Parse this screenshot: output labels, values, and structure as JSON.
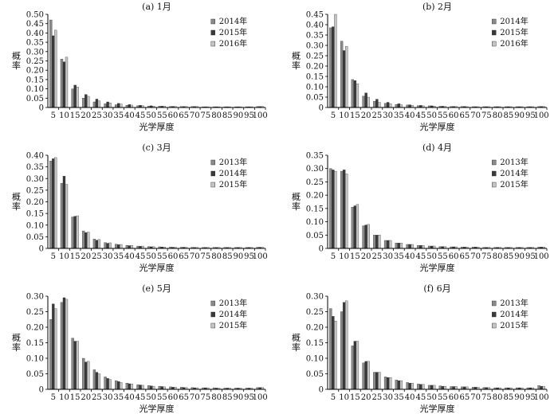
{
  "series_colors": [
    "#8a8a8a",
    "#3a3a3a",
    "#c4c4c4"
  ],
  "chart_data": [
    {
      "type": "bar",
      "title": "(a) 1月",
      "xlabel": "光学厚度",
      "ylabel": "概率",
      "categories": [
        "5",
        "10",
        "15",
        "20",
        "25",
        "30",
        "35",
        "40",
        "45",
        "50",
        "55",
        "60",
        "65",
        "70",
        "75",
        "80",
        "85",
        "90",
        "95",
        "100"
      ],
      "ylim": [
        0,
        0.5
      ],
      "yticks": [
        0,
        0.05,
        0.1,
        0.15,
        0.2,
        0.25,
        0.3,
        0.35,
        0.4,
        0.45,
        0.5
      ],
      "ytick_labels": [
        "0",
        "0.05",
        "0.10",
        "0.15",
        "0.20",
        "0.25",
        "0.30",
        "0.35",
        "0.40",
        "0.45",
        "0.50"
      ],
      "series": [
        {
          "name": "2014年",
          "values": [
            0.47,
            0.26,
            0.1,
            0.05,
            0.03,
            0.02,
            0.015,
            0.012,
            0.01,
            0.008,
            0.007,
            0.006,
            0.005,
            0.005,
            0.004,
            0.004,
            0.004,
            0.004,
            0.004,
            0.005
          ]
        },
        {
          "name": "2015年",
          "values": [
            0.385,
            0.245,
            0.12,
            0.07,
            0.045,
            0.03,
            0.022,
            0.016,
            0.012,
            0.009,
            0.007,
            0.006,
            0.005,
            0.005,
            0.004,
            0.004,
            0.004,
            0.004,
            0.004,
            0.005
          ]
        },
        {
          "name": "2016年",
          "values": [
            0.415,
            0.27,
            0.11,
            0.06,
            0.035,
            0.025,
            0.018,
            0.013,
            0.01,
            0.008,
            0.007,
            0.006,
            0.005,
            0.005,
            0.004,
            0.004,
            0.004,
            0.004,
            0.004,
            0.006
          ]
        }
      ]
    },
    {
      "type": "bar",
      "title": "(b) 2月",
      "xlabel": "光学厚度",
      "ylabel": "概率",
      "categories": [
        "5",
        "10",
        "15",
        "20",
        "25",
        "30",
        "35",
        "40",
        "45",
        "50",
        "55",
        "60",
        "65",
        "70",
        "75",
        "80",
        "85",
        "90",
        "95",
        "100"
      ],
      "ylim": [
        0,
        0.45
      ],
      "yticks": [
        0,
        0.05,
        0.1,
        0.15,
        0.2,
        0.25,
        0.3,
        0.35,
        0.4,
        0.45
      ],
      "ytick_labels": [
        "0",
        "0.05",
        "0.10",
        "0.15",
        "0.20",
        "0.25",
        "0.30",
        "0.35",
        "0.40",
        "0.45"
      ],
      "series": [
        {
          "name": "2014年",
          "values": [
            0.385,
            0.32,
            0.135,
            0.055,
            0.03,
            0.02,
            0.015,
            0.012,
            0.009,
            0.008,
            0.006,
            0.005,
            0.005,
            0.004,
            0.004,
            0.004,
            0.004,
            0.004,
            0.004,
            0.005
          ]
        },
        {
          "name": "2015年",
          "values": [
            0.39,
            0.275,
            0.13,
            0.07,
            0.04,
            0.025,
            0.018,
            0.013,
            0.01,
            0.008,
            0.006,
            0.005,
            0.005,
            0.004,
            0.004,
            0.004,
            0.004,
            0.004,
            0.004,
            0.005
          ]
        },
        {
          "name": "2016年",
          "values": [
            0.45,
            0.295,
            0.115,
            0.05,
            0.025,
            0.018,
            0.013,
            0.01,
            0.008,
            0.007,
            0.005,
            0.005,
            0.004,
            0.004,
            0.004,
            0.004,
            0.004,
            0.004,
            0.004,
            0.005
          ]
        }
      ]
    },
    {
      "type": "bar",
      "title": "(c) 3月",
      "xlabel": "光学厚度",
      "ylabel": "概率",
      "categories": [
        "5",
        "10",
        "15",
        "20",
        "25",
        "30",
        "35",
        "40",
        "45",
        "50",
        "55",
        "60",
        "65",
        "70",
        "75",
        "80",
        "85",
        "90",
        "95",
        "100"
      ],
      "ylim": [
        0,
        0.4
      ],
      "yticks": [
        0,
        0.05,
        0.1,
        0.15,
        0.2,
        0.25,
        0.3,
        0.35,
        0.4
      ],
      "ytick_labels": [
        "0",
        "0.05",
        "0.10",
        "0.15",
        "0.20",
        "0.25",
        "0.30",
        "0.35",
        "0.40"
      ],
      "series": [
        {
          "name": "2013年",
          "values": [
            0.375,
            0.28,
            0.135,
            0.075,
            0.04,
            0.025,
            0.018,
            0.013,
            0.01,
            0.008,
            0.007,
            0.006,
            0.005,
            0.005,
            0.004,
            0.004,
            0.004,
            0.004,
            0.004,
            0.005
          ]
        },
        {
          "name": "2014年",
          "values": [
            0.385,
            0.31,
            0.138,
            0.068,
            0.035,
            0.022,
            0.016,
            0.012,
            0.009,
            0.007,
            0.006,
            0.005,
            0.005,
            0.004,
            0.004,
            0.004,
            0.004,
            0.004,
            0.004,
            0.005
          ]
        },
        {
          "name": "2015年",
          "values": [
            0.39,
            0.275,
            0.14,
            0.07,
            0.038,
            0.024,
            0.017,
            0.013,
            0.01,
            0.008,
            0.006,
            0.005,
            0.005,
            0.004,
            0.004,
            0.004,
            0.004,
            0.004,
            0.004,
            0.005
          ]
        }
      ]
    },
    {
      "type": "bar",
      "title": "(d) 4月",
      "xlabel": "光学厚度",
      "ylabel": "概率",
      "categories": [
        "5",
        "10",
        "15",
        "20",
        "25",
        "30",
        "35",
        "40",
        "45",
        "50",
        "55",
        "60",
        "65",
        "70",
        "75",
        "80",
        "85",
        "90",
        "95",
        "100"
      ],
      "ylim": [
        0,
        0.35
      ],
      "yticks": [
        0,
        0.05,
        0.1,
        0.15,
        0.2,
        0.25,
        0.3,
        0.35
      ],
      "ytick_labels": [
        "0",
        "0.05",
        "0.10",
        "0.15",
        "0.20",
        "0.25",
        "0.30",
        "0.35"
      ],
      "series": [
        {
          "name": "2013年",
          "values": [
            0.3,
            0.29,
            0.155,
            0.085,
            0.05,
            0.03,
            0.02,
            0.015,
            0.011,
            0.009,
            0.007,
            0.006,
            0.005,
            0.005,
            0.004,
            0.004,
            0.004,
            0.004,
            0.004,
            0.005
          ]
        },
        {
          "name": "2014年",
          "values": [
            0.295,
            0.295,
            0.16,
            0.088,
            0.05,
            0.03,
            0.02,
            0.015,
            0.011,
            0.009,
            0.007,
            0.006,
            0.005,
            0.005,
            0.004,
            0.004,
            0.004,
            0.004,
            0.004,
            0.005
          ]
        },
        {
          "name": "2015年",
          "values": [
            0.29,
            0.28,
            0.165,
            0.09,
            0.05,
            0.03,
            0.02,
            0.015,
            0.011,
            0.009,
            0.007,
            0.006,
            0.005,
            0.005,
            0.004,
            0.004,
            0.004,
            0.004,
            0.004,
            0.005
          ]
        }
      ]
    },
    {
      "type": "bar",
      "title": "(e) 5月",
      "xlabel": "光学厚度",
      "ylabel": "概率",
      "categories": [
        "5",
        "10",
        "15",
        "20",
        "25",
        "30",
        "35",
        "40",
        "45",
        "50",
        "55",
        "60",
        "65",
        "70",
        "75",
        "80",
        "85",
        "90",
        "95",
        "100"
      ],
      "ylim": [
        0,
        0.3
      ],
      "yticks": [
        0,
        0.05,
        0.1,
        0.15,
        0.2,
        0.25,
        0.3
      ],
      "ytick_labels": [
        "0",
        "0.05",
        "0.10",
        "0.15",
        "0.20",
        "0.25",
        "0.30"
      ],
      "series": [
        {
          "name": "2013年",
          "values": [
            0.225,
            0.28,
            0.165,
            0.1,
            0.063,
            0.04,
            0.028,
            0.02,
            0.015,
            0.012,
            0.01,
            0.008,
            0.007,
            0.006,
            0.005,
            0.005,
            0.004,
            0.004,
            0.004,
            0.006
          ]
        },
        {
          "name": "2014年",
          "values": [
            0.275,
            0.295,
            0.155,
            0.088,
            0.055,
            0.035,
            0.025,
            0.018,
            0.014,
            0.011,
            0.009,
            0.007,
            0.006,
            0.005,
            0.005,
            0.004,
            0.004,
            0.004,
            0.004,
            0.006
          ]
        },
        {
          "name": "2015年",
          "values": [
            0.26,
            0.29,
            0.155,
            0.09,
            0.05,
            0.032,
            0.022,
            0.017,
            0.013,
            0.01,
            0.008,
            0.007,
            0.006,
            0.005,
            0.005,
            0.004,
            0.004,
            0.004,
            0.004,
            0.006
          ]
        }
      ]
    },
    {
      "type": "bar",
      "title": "(f) 6月",
      "xlabel": "光学厚度",
      "ylabel": "概率",
      "categories": [
        "5",
        "10",
        "15",
        "20",
        "25",
        "30",
        "35",
        "40",
        "45",
        "50",
        "55",
        "60",
        "65",
        "70",
        "75",
        "80",
        "85",
        "90",
        "95",
        "100"
      ],
      "ylim": [
        0,
        0.3
      ],
      "yticks": [
        0,
        0.05,
        0.1,
        0.15,
        0.2,
        0.25,
        0.3
      ],
      "ytick_labels": [
        "0",
        "0.05",
        "0.10",
        "0.15",
        "0.20",
        "0.25",
        "0.30"
      ],
      "series": [
        {
          "name": "2013年",
          "values": [
            0.26,
            0.25,
            0.14,
            0.085,
            0.055,
            0.04,
            0.03,
            0.022,
            0.017,
            0.013,
            0.011,
            0.009,
            0.008,
            0.007,
            0.006,
            0.005,
            0.005,
            0.005,
            0.005,
            0.012
          ]
        },
        {
          "name": "2014年",
          "values": [
            0.235,
            0.28,
            0.155,
            0.09,
            0.055,
            0.038,
            0.028,
            0.02,
            0.016,
            0.013,
            0.01,
            0.009,
            0.008,
            0.007,
            0.006,
            0.005,
            0.005,
            0.005,
            0.005,
            0.01
          ]
        },
        {
          "name": "2015年",
          "values": [
            0.22,
            0.285,
            0.155,
            0.09,
            0.055,
            0.038,
            0.028,
            0.02,
            0.016,
            0.013,
            0.01,
            0.009,
            0.008,
            0.007,
            0.006,
            0.005,
            0.005,
            0.005,
            0.005,
            0.01
          ]
        }
      ]
    }
  ]
}
